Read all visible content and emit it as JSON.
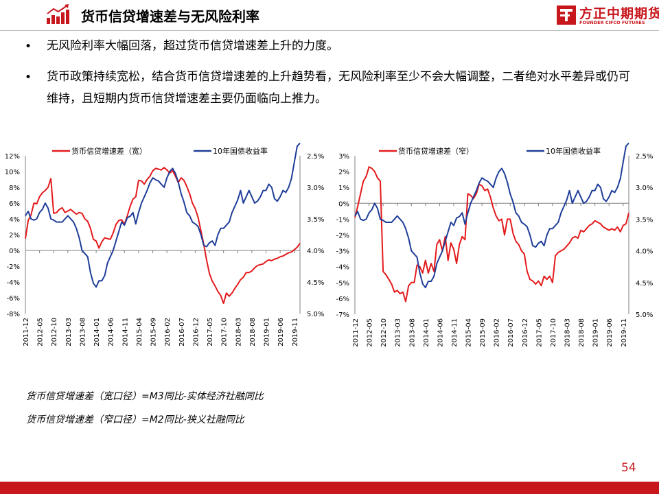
{
  "header": {
    "title": "货币信贷增速差与无风险利率",
    "icon": "bar-chart-growth-icon",
    "logo_cn": "方正中期期货",
    "logo_en": "FOUNDER CIFCO FUTURES"
  },
  "colors": {
    "brand_red": "#c8161d",
    "series_red": "#e31a1c",
    "series_blue": "#1f3d99"
  },
  "bullets": [
    "无风险利率大幅回落，超过货币信贷增速差上升的力度。",
    "货币政策持续宽松，结合货币信贷增速差的上升趋势看，无风险利率至少不会大幅调整，二者绝对水平差异或仍可维持，且短期内货币信贷增速差主要仍面临向上推力。"
  ],
  "notes": [
    "货币信贷增速差（宽口径）=M3同比-实体经济社融同比",
    "货币信贷增速差（窄口径）=M2同比-狭义社融同比"
  ],
  "page_number": "54",
  "chart_data": [
    {
      "type": "line",
      "x_tick_labels": [
        "2011-12",
        "2012-05",
        "2012-10",
        "2013-03",
        "2013-08",
        "2014-01",
        "2014-06",
        "2014-11",
        "2015-04",
        "2015-09",
        "2016-02",
        "2016-07",
        "2016-12",
        "2017-05",
        "2017-10",
        "2018-03",
        "2018-08",
        "2019-01",
        "2019-06",
        "2019-11"
      ],
      "x_start": "2011-12",
      "y_left": {
        "ticks": [
          "12%",
          "10%",
          "8%",
          "6%",
          "4%",
          "2%",
          "0%",
          "-2%",
          "-4%",
          "-6%",
          "-8%"
        ],
        "range": [
          -8,
          12
        ]
      },
      "y_right": {
        "ticks": [
          "2.5%",
          "3.0%",
          "3.5%",
          "4.0%",
          "4.5%",
          "5.0%"
        ],
        "range": [
          2.5,
          5.0
        ],
        "inverted": true
      },
      "series": [
        {
          "name": "货币信贷增速差（宽）",
          "axis": "left",
          "color": "#e31a1c",
          "values": [
            1.5,
            3.8,
            4.5,
            6.0,
            5.9,
            6.8,
            7.3,
            7.6,
            8.0,
            9.1,
            4.7,
            4.8,
            5.2,
            5.4,
            4.8,
            5.0,
            5.2,
            4.9,
            4.6,
            4.8,
            4.7,
            4.0,
            3.7,
            2.8,
            1.4,
            1.2,
            0.3,
            1.1,
            1.6,
            1.5,
            1.4,
            2.2,
            3.3,
            3.8,
            3.9,
            3.3,
            4.4,
            5.6,
            6.5,
            6.8,
            8.9,
            8.8,
            8.4,
            9.0,
            9.4,
            10.1,
            10.4,
            10.3,
            10.2,
            10.5,
            10.2,
            9.8,
            10.1,
            9.4,
            8.6,
            9.2,
            8.9,
            8.1,
            7.2,
            6.0,
            5.3,
            4.2,
            2.5,
            0.8,
            -1.2,
            -2.9,
            -3.9,
            -4.5,
            -5.2,
            -5.7,
            -6.7,
            -5.4,
            -5.8,
            -5.4,
            -4.8,
            -4.3,
            -3.7,
            -3.4,
            -2.8,
            -2.8,
            -2.6,
            -2.2,
            -1.9,
            -1.8,
            -1.7,
            -1.4,
            -1.2,
            -1.3,
            -1.1,
            -1.0,
            -0.8,
            -0.7,
            -0.5,
            -0.3,
            -0.2,
            0.1,
            0.4,
            0.9
          ]
        },
        {
          "name": "10年国债收益率",
          "axis": "right",
          "color": "#1f3d99",
          "values": [
            3.45,
            3.38,
            3.5,
            3.52,
            3.5,
            3.4,
            3.35,
            3.25,
            3.33,
            3.5,
            3.52,
            3.55,
            3.55,
            3.55,
            3.5,
            3.45,
            3.5,
            3.55,
            3.65,
            3.8,
            4.0,
            4.05,
            4.1,
            4.35,
            4.52,
            4.58,
            4.48,
            4.48,
            4.4,
            4.2,
            4.1,
            4.0,
            3.85,
            3.7,
            3.55,
            3.6,
            3.48,
            3.46,
            3.4,
            3.58,
            3.4,
            3.25,
            3.15,
            3.05,
            2.93,
            2.85,
            2.88,
            2.9,
            2.95,
            3.0,
            2.85,
            2.75,
            2.7,
            2.78,
            2.92,
            3.1,
            3.23,
            3.4,
            3.45,
            3.55,
            3.58,
            3.62,
            3.75,
            3.92,
            3.94,
            3.88,
            3.85,
            3.92,
            3.75,
            3.65,
            3.65,
            3.6,
            3.55,
            3.4,
            3.3,
            3.2,
            3.05,
            3.25,
            3.15,
            3.05,
            3.15,
            3.25,
            3.22,
            3.15,
            3.05,
            3.05,
            2.95,
            3.0,
            3.18,
            3.22,
            3.15,
            3.05,
            3.08,
            3.0,
            2.86,
            2.6,
            2.35,
            2.3
          ]
        }
      ]
    },
    {
      "type": "line",
      "x_tick_labels": [
        "2011-12",
        "2012-05",
        "2012-10",
        "2013-03",
        "2013-08",
        "2014-01",
        "2014-06",
        "2014-11",
        "2015-04",
        "2015-09",
        "2016-02",
        "2016-07",
        "2016-12",
        "2017-05",
        "2017-10",
        "2018-03",
        "2018-08",
        "2019-01",
        "2019-06",
        "2019-11"
      ],
      "x_start": "2011-12",
      "y_left": {
        "ticks": [
          "3%",
          "2%",
          "1%",
          "0%",
          "-1%",
          "-2%",
          "-3%",
          "-4%",
          "-5%",
          "-6%",
          "-7%"
        ],
        "range": [
          -7,
          3
        ]
      },
      "y_right": {
        "ticks": [
          "2.5%",
          "3.0%",
          "3.5%",
          "4.0%",
          "4.5%",
          "5.0%"
        ],
        "range": [
          2.5,
          5.0
        ],
        "inverted": true
      },
      "series": [
        {
          "name": "货币信贷增速差（窄）",
          "axis": "left",
          "color": "#e31a1c",
          "values": [
            -0.9,
            -0.2,
            0.6,
            1.4,
            1.7,
            2.3,
            2.2,
            2.0,
            1.6,
            1.4,
            -4.3,
            -4.5,
            -4.8,
            -5.1,
            -5.6,
            -5.5,
            -5.7,
            -5.6,
            -6.2,
            -5.2,
            -5.0,
            -5.0,
            -3.9,
            -4.0,
            -4.4,
            -3.6,
            -4.4,
            -3.8,
            -4.3,
            -2.6,
            -2.3,
            -3.0,
            -2.1,
            -3.6,
            -2.5,
            -2.9,
            -3.8,
            -2.6,
            -2.1,
            -2.3,
            0.6,
            0.5,
            0.3,
            0.6,
            1.2,
            1.1,
            0.8,
            0.9,
            0.4,
            -0.3,
            -0.8,
            -1.1,
            -1.0,
            -2.0,
            -1.0,
            -1.0,
            -1.9,
            -2.4,
            -2.6,
            -3.0,
            -3.2,
            -4.3,
            -4.8,
            -4.9,
            -5.1,
            -4.9,
            -5.2,
            -4.6,
            -4.8,
            -4.6,
            -5.0,
            -3.3,
            -3.1,
            -3.0,
            -2.9,
            -2.7,
            -2.5,
            -2.2,
            -2.1,
            -2.2,
            -1.7,
            -1.8,
            -1.6,
            -1.4,
            -1.3,
            -1.1,
            -1.2,
            -1.3,
            -1.5,
            -1.6,
            -1.7,
            -1.6,
            -1.7,
            -1.5,
            -1.8,
            -1.4,
            -1.3,
            -0.6
          ]
        },
        {
          "name": "10年国债收益率",
          "axis": "right",
          "color": "#1f3d99",
          "values": [
            3.45,
            3.38,
            3.5,
            3.52,
            3.5,
            3.4,
            3.35,
            3.25,
            3.33,
            3.5,
            3.52,
            3.55,
            3.55,
            3.55,
            3.5,
            3.45,
            3.5,
            3.55,
            3.65,
            3.8,
            4.0,
            4.05,
            4.1,
            4.35,
            4.52,
            4.58,
            4.48,
            4.48,
            4.4,
            4.2,
            4.1,
            4.0,
            3.85,
            3.7,
            3.55,
            3.6,
            3.48,
            3.46,
            3.4,
            3.58,
            3.4,
            3.25,
            3.15,
            3.05,
            2.93,
            2.85,
            2.88,
            2.9,
            2.95,
            3.0,
            2.85,
            2.75,
            2.7,
            2.78,
            2.92,
            3.1,
            3.23,
            3.4,
            3.45,
            3.55,
            3.58,
            3.62,
            3.75,
            3.92,
            3.94,
            3.88,
            3.85,
            3.92,
            3.75,
            3.65,
            3.65,
            3.6,
            3.55,
            3.4,
            3.3,
            3.2,
            3.05,
            3.25,
            3.15,
            3.05,
            3.15,
            3.25,
            3.22,
            3.15,
            3.05,
            3.05,
            2.95,
            3.0,
            3.18,
            3.22,
            3.15,
            3.05,
            3.08,
            3.0,
            2.86,
            2.6,
            2.35,
            2.3
          ]
        }
      ]
    }
  ]
}
